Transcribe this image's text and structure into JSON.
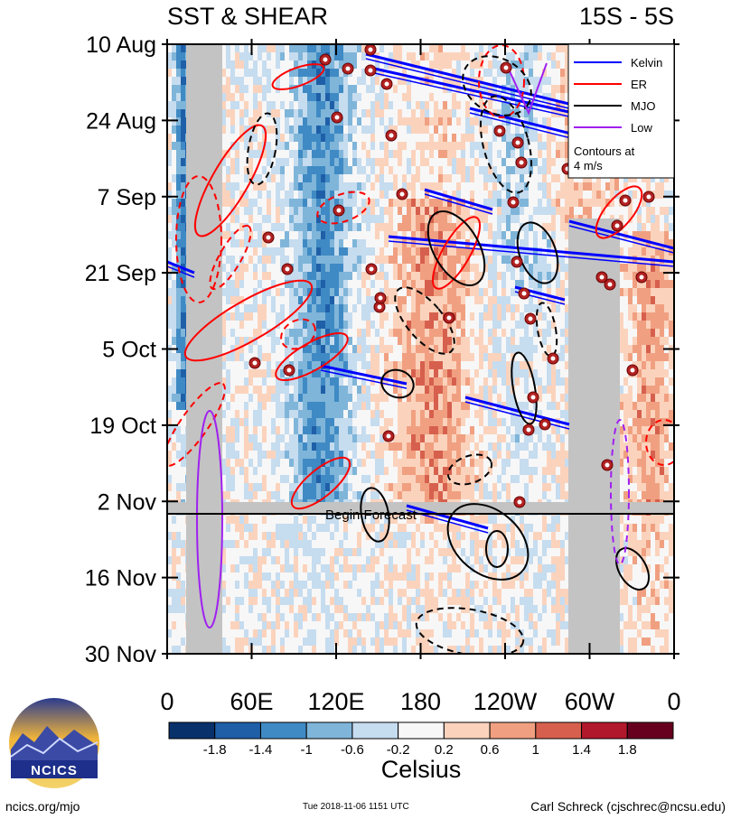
{
  "chart_data": {
    "type": "heatmap",
    "title_left": "SST & SHEAR",
    "title_right": "15S - 5S",
    "y_ticks": [
      "10 Aug",
      "24 Aug",
      "7 Sep",
      "21 Sep",
      "5 Oct",
      "19 Oct",
      "2 Nov",
      "16 Nov",
      "30 Nov"
    ],
    "x_ticks": [
      "0",
      "60E",
      "120E",
      "180",
      "120W",
      "60W",
      "0"
    ],
    "colorbar": {
      "label": "Celsius",
      "ticks": [
        "-1.8",
        "-1.4",
        "-1",
        "-0.6",
        "-0.2",
        "0.2",
        "0.6",
        "1",
        "1.4",
        "1.8"
      ],
      "colors": [
        "#08306b",
        "#1f5fa8",
        "#3f8ac4",
        "#7fb5d9",
        "#c6dcef",
        "#f7f7f7",
        "#fbd3bd",
        "#f0a081",
        "#d6604d",
        "#b2182b",
        "#67001f"
      ]
    },
    "legend": [
      {
        "label": "Kelvin",
        "color": "#0000ff"
      },
      {
        "label": "ER",
        "color": "#ff0000"
      },
      {
        "label": "MJO",
        "color": "#000000"
      },
      {
        "label": "Low",
        "color": "#a020f0"
      }
    ],
    "legend_note": [
      "Contours at",
      "4 m/s"
    ],
    "forecast_label": "Begin Forecast"
  },
  "footer": {
    "url": "ncics.org/mjo",
    "timestamp": "Tue 2018-11-06 1151 UTC",
    "author": "Carl Schreck (cjschrec@ncsu.edu)"
  },
  "logo": {
    "text": "NCICS"
  }
}
